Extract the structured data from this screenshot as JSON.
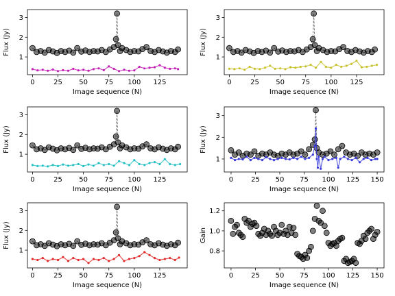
{
  "chart_data": [
    {
      "type": "scatter",
      "xlabel": "Image sequence (N)",
      "ylabel": "Flux (Jy)",
      "xlim": [
        -5,
        152
      ],
      "ylim": [
        0.1,
        3.4
      ],
      "xticks": [
        0,
        25,
        50,
        75,
        100,
        125
      ],
      "yticks": [
        1,
        2,
        3
      ],
      "series": [
        {
          "kind": "markers-dashed",
          "color": "#000000",
          "x": [
            0,
            4,
            8,
            12,
            16,
            20,
            24,
            28,
            32,
            36,
            40,
            44,
            48,
            52,
            56,
            60,
            64,
            68,
            72,
            76,
            80,
            82,
            83,
            84,
            86,
            88,
            92,
            96,
            100,
            104,
            108,
            112,
            116,
            120,
            124,
            128,
            132,
            136,
            140,
            143
          ],
          "y": [
            1.45,
            1.25,
            1.3,
            1.22,
            1.35,
            1.28,
            1.2,
            1.3,
            1.25,
            1.32,
            1.22,
            1.45,
            1.27,
            1.33,
            1.25,
            1.3,
            1.28,
            1.35,
            1.25,
            1.38,
            1.5,
            1.9,
            3.2,
            1.6,
            1.3,
            1.45,
            1.35,
            1.25,
            1.3,
            1.28,
            1.4,
            1.5,
            1.3,
            1.25,
            1.35,
            1.28,
            1.22,
            1.3,
            1.25,
            1.38
          ]
        },
        {
          "kind": "line-small",
          "color": "#c31fb5",
          "x": [
            0,
            5,
            10,
            15,
            20,
            25,
            30,
            35,
            40,
            45,
            50,
            55,
            60,
            65,
            70,
            75,
            80,
            85,
            90,
            95,
            100,
            105,
            110,
            115,
            120,
            125,
            130,
            135,
            140,
            143
          ],
          "y": [
            0.38,
            0.32,
            0.35,
            0.3,
            0.36,
            0.28,
            0.33,
            0.3,
            0.4,
            0.32,
            0.35,
            0.3,
            0.38,
            0.42,
            0.33,
            0.52,
            0.4,
            0.28,
            0.35,
            0.3,
            0.32,
            0.5,
            0.42,
            0.45,
            0.48,
            0.58,
            0.45,
            0.4,
            0.42,
            0.38
          ]
        }
      ]
    },
    {
      "type": "scatter",
      "xlabel": "Image sequence (N)",
      "ylabel": "Flux (Jy)",
      "xlim": [
        -5,
        152
      ],
      "ylim": [
        0.1,
        3.4
      ],
      "xticks": [
        0,
        25,
        50,
        75,
        100,
        125
      ],
      "yticks": [
        1,
        2,
        3
      ],
      "series": [
        {
          "kind": "markers-dashed",
          "color": "#000000",
          "x": [
            0,
            4,
            8,
            12,
            16,
            20,
            24,
            28,
            32,
            36,
            40,
            44,
            48,
            52,
            56,
            60,
            64,
            68,
            72,
            76,
            80,
            82,
            83,
            84,
            86,
            88,
            92,
            96,
            100,
            104,
            108,
            112,
            116,
            120,
            124,
            128,
            132,
            136,
            140,
            143
          ],
          "y": [
            1.45,
            1.25,
            1.3,
            1.22,
            1.35,
            1.28,
            1.2,
            1.3,
            1.25,
            1.32,
            1.22,
            1.45,
            1.27,
            1.33,
            1.25,
            1.3,
            1.28,
            1.35,
            1.25,
            1.38,
            1.5,
            1.9,
            3.2,
            1.6,
            1.3,
            1.45,
            1.35,
            1.25,
            1.3,
            1.28,
            1.4,
            1.5,
            1.3,
            1.25,
            1.35,
            1.28,
            1.22,
            1.3,
            1.25,
            1.38
          ]
        },
        {
          "kind": "line-small",
          "color": "#c8c22c",
          "x": [
            0,
            5,
            10,
            15,
            20,
            25,
            30,
            35,
            40,
            45,
            50,
            55,
            60,
            65,
            70,
            75,
            80,
            85,
            90,
            95,
            100,
            105,
            110,
            115,
            120,
            125,
            130,
            135,
            140,
            145
          ],
          "y": [
            0.4,
            0.38,
            0.42,
            0.35,
            0.5,
            0.4,
            0.38,
            0.45,
            0.55,
            0.4,
            0.42,
            0.38,
            0.48,
            0.45,
            0.5,
            0.52,
            0.6,
            0.45,
            0.75,
            0.5,
            0.45,
            0.6,
            0.5,
            0.55,
            0.65,
            0.8,
            0.48,
            0.5,
            0.55,
            0.6
          ]
        }
      ]
    },
    {
      "type": "scatter",
      "xlabel": "Image sequence (N)",
      "ylabel": "Flux (Jy)",
      "xlim": [
        -5,
        152
      ],
      "ylim": [
        0.1,
        3.4
      ],
      "xticks": [
        0,
        25,
        50,
        75,
        100,
        125
      ],
      "yticks": [
        1,
        2,
        3
      ],
      "series": [
        {
          "kind": "markers-dashed",
          "color": "#000000",
          "x": [
            0,
            4,
            8,
            12,
            16,
            20,
            24,
            28,
            32,
            36,
            40,
            44,
            48,
            52,
            56,
            60,
            64,
            68,
            72,
            76,
            80,
            82,
            83,
            84,
            86,
            88,
            92,
            96,
            100,
            104,
            108,
            112,
            116,
            120,
            124,
            128,
            132,
            136,
            140,
            143
          ],
          "y": [
            1.45,
            1.25,
            1.3,
            1.22,
            1.35,
            1.28,
            1.2,
            1.3,
            1.25,
            1.32,
            1.22,
            1.45,
            1.27,
            1.33,
            1.25,
            1.3,
            1.28,
            1.35,
            1.25,
            1.38,
            1.5,
            1.9,
            3.2,
            1.6,
            1.3,
            1.45,
            1.35,
            1.25,
            1.3,
            1.28,
            1.4,
            1.5,
            1.3,
            1.25,
            1.35,
            1.28,
            1.22,
            1.3,
            1.25,
            1.38
          ]
        },
        {
          "kind": "line-small",
          "color": "#25c0c4",
          "x": [
            0,
            5,
            10,
            15,
            20,
            25,
            30,
            35,
            40,
            45,
            50,
            55,
            60,
            65,
            70,
            75,
            80,
            85,
            90,
            95,
            100,
            105,
            110,
            115,
            120,
            125,
            130,
            135,
            140,
            145
          ],
          "y": [
            0.45,
            0.4,
            0.42,
            0.38,
            0.45,
            0.4,
            0.48,
            0.42,
            0.45,
            0.5,
            0.4,
            0.48,
            0.42,
            0.55,
            0.45,
            0.5,
            0.42,
            0.65,
            0.55,
            0.45,
            0.7,
            0.5,
            0.45,
            0.55,
            0.6,
            0.5,
            0.75,
            0.5,
            0.45,
            0.5
          ]
        }
      ]
    },
    {
      "type": "scatter",
      "xlabel": "Image sequence (N)",
      "ylabel": "Flux (Jy)",
      "xlim": [
        -7,
        157
      ],
      "ylim": [
        0.4,
        3.4
      ],
      "xticks": [
        0,
        25,
        50,
        75,
        100,
        125,
        150
      ],
      "yticks": [
        1,
        2,
        3
      ],
      "series": [
        {
          "kind": "markers-dashed",
          "color": "#000000",
          "x": [
            0,
            4,
            8,
            12,
            16,
            20,
            24,
            28,
            32,
            36,
            40,
            44,
            48,
            52,
            56,
            60,
            64,
            68,
            72,
            76,
            80,
            84,
            86,
            87,
            88,
            90,
            94,
            98,
            102,
            106,
            110,
            114,
            118,
            122,
            126,
            130,
            134,
            138,
            142,
            146,
            150
          ],
          "y": [
            1.4,
            1.2,
            1.3,
            1.15,
            1.25,
            1.2,
            1.35,
            1.15,
            1.25,
            1.2,
            1.3,
            1.2,
            1.15,
            1.25,
            1.2,
            1.3,
            1.2,
            1.25,
            1.35,
            1.2,
            1.45,
            1.65,
            1.9,
            3.25,
            1.5,
            1.3,
            1.2,
            1.25,
            1.35,
            1.2,
            1.45,
            1.6,
            1.3,
            1.2,
            1.25,
            1.15,
            1.3,
            1.2,
            1.25,
            1.2,
            1.3
          ]
        },
        {
          "kind": "line-small",
          "color": "#3a3bdc",
          "x": [
            0,
            4,
            8,
            12,
            16,
            20,
            24,
            28,
            32,
            36,
            40,
            44,
            48,
            52,
            56,
            60,
            64,
            68,
            72,
            76,
            80,
            84,
            86,
            87,
            88,
            89,
            90,
            92,
            94,
            96,
            100,
            104,
            108,
            110,
            112,
            116,
            120,
            124,
            128,
            132,
            136,
            140,
            144,
            148,
            150
          ],
          "y": [
            1.05,
            0.95,
            1.0,
            0.98,
            1.1,
            0.95,
            1.05,
            1.0,
            0.95,
            1.08,
            1.0,
            0.95,
            1.0,
            1.05,
            1.0,
            0.98,
            1.05,
            1.0,
            1.1,
            1.0,
            1.05,
            1.2,
            1.6,
            2.4,
            1.0,
            0.6,
            1.1,
            0.55,
            1.0,
            1.1,
            0.95,
            1.0,
            1.05,
            0.6,
            1.0,
            1.1,
            1.0,
            0.95,
            1.05,
            0.85,
            1.0,
            1.05,
            0.95,
            1.0,
            1.0
          ]
        }
      ]
    },
    {
      "type": "scatter",
      "xlabel": "Image sequence (N)",
      "ylabel": "Flux (Jy)",
      "xlim": [
        -5,
        152
      ],
      "ylim": [
        0.1,
        3.4
      ],
      "xticks": [
        0,
        25,
        50,
        75,
        100,
        125
      ],
      "yticks": [
        1,
        2,
        3
      ],
      "series": [
        {
          "kind": "markers-dashed",
          "color": "#000000",
          "x": [
            0,
            4,
            8,
            12,
            16,
            20,
            24,
            28,
            32,
            36,
            40,
            44,
            48,
            52,
            56,
            60,
            64,
            68,
            72,
            76,
            80,
            82,
            83,
            84,
            86,
            88,
            92,
            96,
            100,
            104,
            108,
            112,
            116,
            120,
            124,
            128,
            132,
            136,
            140,
            143
          ],
          "y": [
            1.45,
            1.25,
            1.3,
            1.22,
            1.35,
            1.28,
            1.2,
            1.3,
            1.25,
            1.32,
            1.22,
            1.45,
            1.27,
            1.33,
            1.25,
            1.3,
            1.28,
            1.35,
            1.25,
            1.38,
            1.5,
            1.9,
            3.2,
            1.6,
            1.3,
            1.45,
            1.35,
            1.25,
            1.3,
            1.28,
            1.4,
            1.5,
            1.3,
            1.25,
            1.35,
            1.28,
            1.22,
            1.3,
            1.25,
            1.38
          ]
        },
        {
          "kind": "line-small",
          "color": "#e12c2c",
          "x": [
            0,
            5,
            10,
            15,
            20,
            25,
            30,
            35,
            40,
            45,
            50,
            55,
            60,
            65,
            70,
            75,
            80,
            85,
            90,
            95,
            100,
            105,
            110,
            115,
            120,
            125,
            130,
            135,
            140,
            144
          ],
          "y": [
            0.55,
            0.5,
            0.6,
            0.45,
            0.55,
            0.5,
            0.65,
            0.45,
            0.6,
            0.5,
            0.55,
            0.35,
            0.55,
            0.5,
            0.6,
            0.45,
            0.55,
            0.75,
            0.45,
            0.55,
            0.6,
            0.7,
            0.9,
            0.75,
            0.6,
            0.5,
            0.55,
            0.6,
            0.5,
            0.62
          ]
        }
      ]
    },
    {
      "type": "scatter",
      "xlabel": "Image sequence (N)",
      "ylabel": "Gain",
      "xlim": [
        -7,
        157
      ],
      "ylim": [
        0.63,
        1.28
      ],
      "xticks": [
        0,
        25,
        50,
        75,
        100,
        125,
        150
      ],
      "yticks": [
        0.8,
        1.0,
        1.2
      ],
      "series": [
        {
          "kind": "markers",
          "color": "#000000",
          "x": [
            0,
            2,
            4,
            6,
            8,
            10,
            12,
            14,
            16,
            18,
            20,
            22,
            24,
            26,
            28,
            30,
            32,
            34,
            36,
            38,
            40,
            42,
            44,
            46,
            48,
            50,
            52,
            54,
            56,
            58,
            60,
            62,
            64,
            66,
            68,
            70,
            72,
            74,
            76,
            78,
            80,
            82,
            84,
            86,
            88,
            90,
            92,
            94,
            96,
            98,
            100,
            102,
            104,
            106,
            108,
            110,
            112,
            114,
            116,
            118,
            120,
            122,
            124,
            126,
            128,
            130,
            132,
            134,
            136,
            138,
            140,
            142,
            144,
            146,
            148,
            150
          ],
          "y": [
            1.1,
            0.97,
            1.04,
            1.06,
            0.98,
            0.96,
            0.94,
            1.12,
            1.08,
            1.1,
            1.04,
            1.07,
            1.08,
            1.05,
            0.97,
            0.95,
            0.98,
            1.02,
            0.96,
            1.0,
            0.97,
            0.95,
            1.04,
            1.0,
            0.96,
            0.98,
            1.06,
            0.97,
            1.0,
            0.96,
            1.04,
            0.98,
            1.03,
            0.96,
            0.77,
            0.75,
            0.74,
            0.72,
            0.76,
            0.73,
            0.8,
            0.84,
            1.0,
            1.12,
            1.25,
            1.1,
            1.08,
            1.2,
            1.05,
            0.98,
            0.88,
            0.85,
            0.87,
            0.88,
            0.85,
            0.9,
            0.92,
            0.93,
            0.7,
            0.72,
            0.68,
            0.69,
            0.7,
            0.72,
            0.68,
            0.88,
            0.87,
            0.9,
            0.95,
            0.92,
            0.98,
            1.0,
            1.02,
            0.92,
            0.96,
            0.99
          ]
        }
      ]
    }
  ]
}
